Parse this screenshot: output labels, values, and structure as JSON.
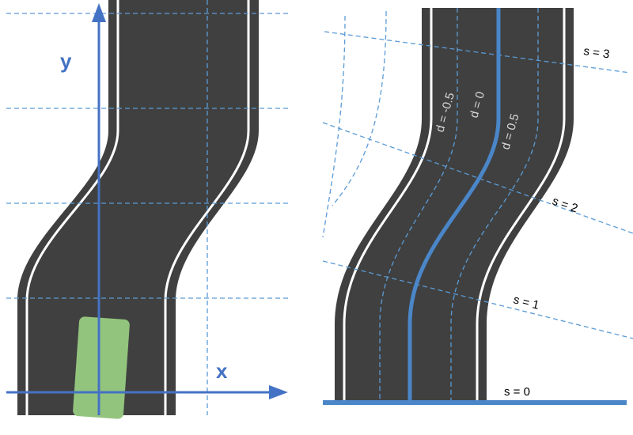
{
  "left_panel": {
    "x_axis_label": "x",
    "y_axis_label": "y"
  },
  "right_panel": {
    "s_labels": [
      "s = 0",
      "s = 1",
      "s = 2",
      "s = 3"
    ],
    "d_labels": [
      "d = -0.5",
      "d = 0",
      "d = 0.5"
    ]
  },
  "colors": {
    "road": "#404040",
    "road_edge": "#ffffff",
    "axis": "#4472c4",
    "grid": "#5b9bd5",
    "vehicle": "#93c47d",
    "centerline": "#4a86c8"
  }
}
